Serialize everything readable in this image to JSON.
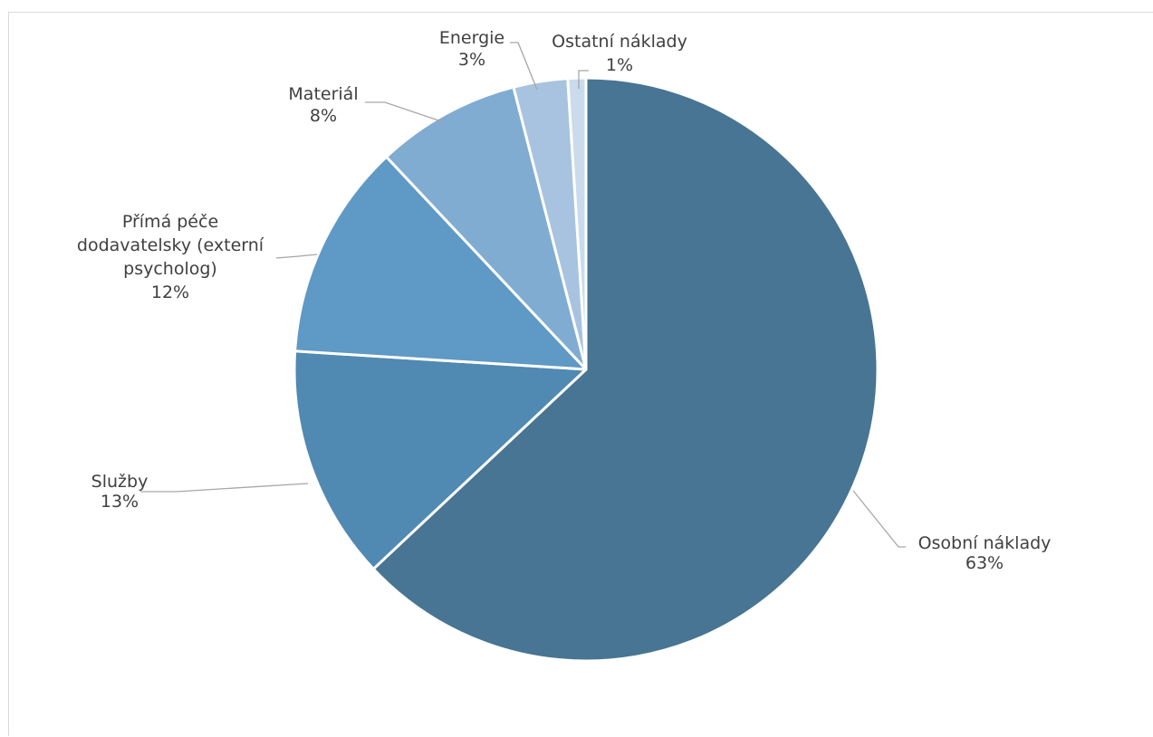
{
  "chart_data": {
    "type": "pie",
    "title": "",
    "legend": "none",
    "slices": [
      {
        "name": "Osobní náklady",
        "value": 63,
        "label_lines": [
          "Osobní náklady"
        ],
        "pct_label": "63%",
        "color": "#477593"
      },
      {
        "name": "Služby",
        "value": 13,
        "label_lines": [
          "Služby"
        ],
        "pct_label": "13%",
        "color": "#5089B2"
      },
      {
        "name": "Přímá péče dodavatelsky (externí psycholog)",
        "value": 12,
        "label_lines": [
          "Přímá péče",
          "dodavatelsky (externí",
          "psycholog)"
        ],
        "pct_label": "12%",
        "color": "#5F99C5"
      },
      {
        "name": "Materiál",
        "value": 8,
        "label_lines": [
          "Materiál"
        ],
        "pct_label": "8%",
        "color": "#80ACD2"
      },
      {
        "name": "Energie",
        "value": 3,
        "label_lines": [
          "Energie"
        ],
        "pct_label": "3%",
        "color": "#A7C3DF"
      },
      {
        "name": "Ostatní náklady",
        "value": 1,
        "label_lines": [
          "Ostatní náklady"
        ],
        "pct_label": "1%",
        "color": "#C9DBEC"
      }
    ]
  }
}
